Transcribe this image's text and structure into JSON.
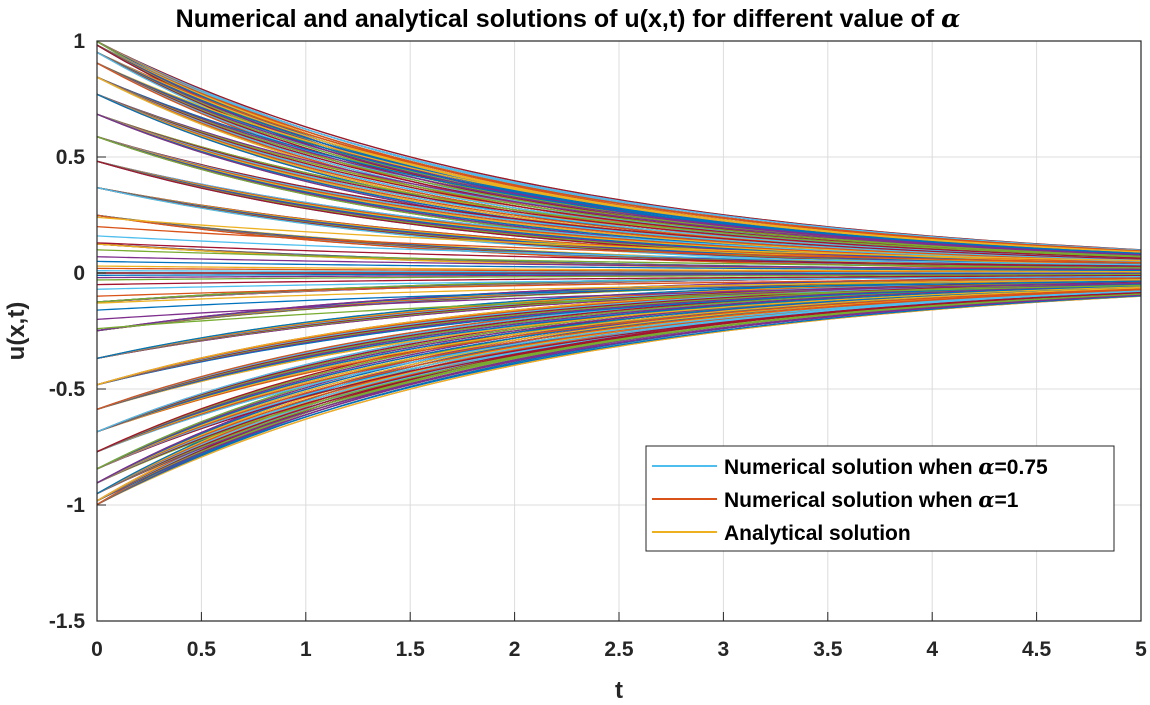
{
  "chart_data": {
    "type": "line",
    "title_prefix": "Numerical and analytical solutions of u(x,t) for different value of ",
    "title_symbol": "α",
    "xlabel": "t",
    "ylabel": "u(x,t)",
    "xlim": [
      0,
      5
    ],
    "ylim": [
      -1.5,
      1
    ],
    "xticks": [
      "0",
      "0.5",
      "1",
      "1.5",
      "2",
      "2.5",
      "3",
      "3.5",
      "4",
      "4.5",
      "5"
    ],
    "yticks": [
      "1",
      "0.5",
      "0",
      "-0.5",
      "-1",
      "-1.5"
    ],
    "grid": true,
    "legend_position": "bottom-right",
    "model": "u(x,t) = sin(pi*x) * exp(-t/2), one curve per x",
    "decay_rate": 0.5,
    "x_samples": [
      0,
      0.04,
      0.08,
      0.12,
      0.16,
      0.2,
      0.24,
      0.28,
      0.32,
      0.36,
      0.4,
      0.44,
      0.48,
      0.52,
      0.56,
      0.6,
      0.64,
      0.68,
      0.72,
      0.76,
      0.8,
      0.84,
      0.88,
      0.92,
      0.96,
      1.04,
      1.08,
      1.12,
      1.16,
      1.2,
      1.24,
      1.28,
      1.32,
      1.36,
      1.4,
      1.44,
      1.48,
      1.52,
      1.56,
      1.6,
      1.64,
      1.68,
      1.72,
      1.76,
      1.8,
      1.84,
      1.88,
      1.92,
      1.96
    ],
    "series": [
      {
        "name_prefix": "Numerical solution when ",
        "symbol": "α",
        "name_suffix": "=0.75",
        "color": "#4DBEEE"
      },
      {
        "name_prefix": "Numerical solution when ",
        "symbol": "α",
        "name_suffix": "=1",
        "color": "#D95319"
      },
      {
        "name_prefix": "Analytical solution",
        "symbol": "",
        "name_suffix": "",
        "color": "#EDB120"
      }
    ],
    "extra_line_colors": [
      "#0072BD",
      "#7E2F8E",
      "#77AC30",
      "#A2142F"
    ]
  }
}
